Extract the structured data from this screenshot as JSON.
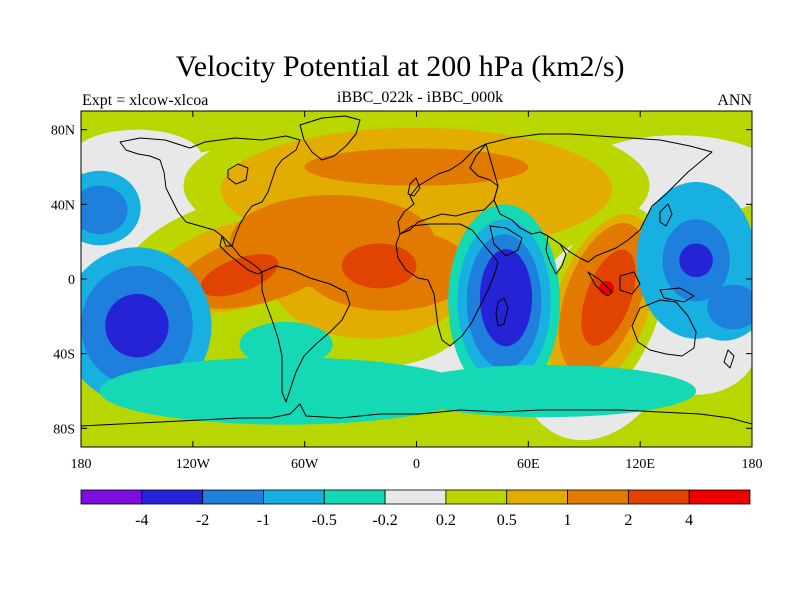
{
  "title": "Velocity Potential at 200 hPa (km2/s)",
  "left_label": "Expt = xlcow-xlcoa",
  "center_label": "iBBC_022k - iBBC_000k",
  "right_label": "ANN",
  "map": {
    "projection": "cylindrical-equidistant",
    "lon_range": [
      -180,
      180
    ],
    "lat_range": [
      -90,
      90
    ],
    "x_ticks": [
      {
        "lon": -180,
        "label": "180"
      },
      {
        "lon": -120,
        "label": "120W"
      },
      {
        "lon": -60,
        "label": "60W"
      },
      {
        "lon": 0,
        "label": "0"
      },
      {
        "lon": 60,
        "label": "60E"
      },
      {
        "lon": 120,
        "label": "120E"
      },
      {
        "lon": 180,
        "label": "180"
      }
    ],
    "y_ticks": [
      {
        "lat": 80,
        "label": "80N"
      },
      {
        "lat": 40,
        "label": "40N"
      },
      {
        "lat": 0,
        "label": "0"
      },
      {
        "lat": -40,
        "label": "40S"
      },
      {
        "lat": -80,
        "label": "80S"
      }
    ],
    "background_color": "#b8d600"
  },
  "colorbar": {
    "colors": [
      "#7a0fe0",
      "#2424d6",
      "#1f7fdc",
      "#17b0e0",
      "#14d9b4",
      "#e8e8e8",
      "#bcd600",
      "#e2ad00",
      "#e27a00",
      "#e04400",
      "#ee0000"
    ],
    "labels": [
      "-4",
      "-2",
      "-1",
      "-0.5",
      "-0.2",
      "0.2",
      "0.5",
      "1",
      "2",
      "4"
    ]
  },
  "fields": [
    {
      "level": "gray",
      "color": "#e8e8e8",
      "blobs": [
        {
          "lon": 25,
          "lat": 70,
          "rx": 32,
          "ry": 12,
          "rot": 0
        },
        {
          "lon": 140,
          "lat": 55,
          "rx": 55,
          "ry": 22,
          "rot": 0
        },
        {
          "lon": -150,
          "lat": 65,
          "rx": 35,
          "ry": 15,
          "rot": 0
        },
        {
          "lon": -115,
          "lat": 27,
          "rx": 70,
          "ry": 40,
          "rot": -15
        },
        {
          "lon": 3,
          "lat": -15,
          "rx": 30,
          "ry": 50,
          "rot": 0
        },
        {
          "lon": 98,
          "lat": -30,
          "rx": 42,
          "ry": 58,
          "rot": 20
        },
        {
          "lon": 150,
          "lat": -38,
          "rx": 32,
          "ry": 24,
          "rot": 0
        },
        {
          "lon": 82,
          "lat": 38,
          "rx": 18,
          "ry": 10,
          "rot": 0
        }
      ]
    },
    {
      "level": "yellow",
      "color": "#bcd600",
      "blobs": [
        {
          "lon": 0,
          "lat": 50,
          "rx": 125,
          "ry": 40,
          "rot": 0
        },
        {
          "lon": -98,
          "lat": 10,
          "rx": 62,
          "ry": 32,
          "rot": -15
        },
        {
          "lon": -20,
          "lat": -12,
          "rx": 52,
          "ry": 35,
          "rot": 0
        },
        {
          "lon": 100,
          "lat": -15,
          "rx": 30,
          "ry": 56,
          "rot": 20
        }
      ]
    },
    {
      "level": "gold",
      "color": "#e2ad00",
      "blobs": [
        {
          "lon": 0,
          "lat": 48,
          "rx": 105,
          "ry": 33,
          "rot": 0
        },
        {
          "lon": -92,
          "lat": 8,
          "rx": 54,
          "ry": 23,
          "rot": -15
        },
        {
          "lon": -25,
          "lat": -2,
          "rx": 52,
          "ry": 30,
          "rot": 0
        },
        {
          "lon": 100,
          "lat": -13,
          "rx": 25,
          "ry": 50,
          "rot": 20
        }
      ]
    },
    {
      "level": "orange",
      "color": "#e27a00",
      "blobs": [
        {
          "lon": -45,
          "lat": 20,
          "rx": 55,
          "ry": 25,
          "rot": 0
        },
        {
          "lon": 0,
          "lat": 60,
          "rx": 60,
          "ry": 10,
          "rot": 0
        },
        {
          "lon": -85,
          "lat": 5,
          "rx": 45,
          "ry": 18,
          "rot": -15
        },
        {
          "lon": -15,
          "lat": 5,
          "rx": 45,
          "ry": 22,
          "rot": 0
        },
        {
          "lon": 100,
          "lat": -10,
          "rx": 20,
          "ry": 42,
          "rot": 20
        }
      ]
    },
    {
      "level": "red-orange",
      "color": "#e04400",
      "blobs": [
        {
          "lon": -95,
          "lat": 2,
          "rx": 22,
          "ry": 9,
          "rot": -20
        },
        {
          "lon": -20,
          "lat": 7,
          "rx": 20,
          "ry": 12,
          "rot": 0
        },
        {
          "lon": 103,
          "lat": -10,
          "rx": 12,
          "ry": 27,
          "rot": 20
        }
      ]
    },
    {
      "level": "red",
      "color": "#ee0000",
      "blobs": [
        {
          "lon": 102,
          "lat": -5,
          "rx": 4,
          "ry": 4,
          "rot": 0
        }
      ]
    },
    {
      "level": "cyan",
      "color": "#17b0e0",
      "blobs": [
        {
          "lon": 150,
          "lat": 10,
          "rx": 32,
          "ry": 42,
          "rot": 0
        },
        {
          "lon": -150,
          "lat": -25,
          "rx": 40,
          "ry": 42,
          "rot": 0
        },
        {
          "lon": -170,
          "lat": 38,
          "rx": 22,
          "ry": 20,
          "rot": 0
        },
        {
          "lon": 165,
          "lat": -15,
          "rx": 20,
          "ry": 18,
          "rot": 0
        }
      ]
    },
    {
      "level": "blue-mid",
      "color": "#1f7fdc",
      "blobs": [
        {
          "lon": 150,
          "lat": 10,
          "rx": 18,
          "ry": 22,
          "rot": 0
        },
        {
          "lon": -150,
          "lat": -25,
          "rx": 30,
          "ry": 32,
          "rot": 0
        },
        {
          "lon": -170,
          "lat": 37,
          "rx": 15,
          "ry": 13,
          "rot": 0
        },
        {
          "lon": 170,
          "lat": -15,
          "rx": 14,
          "ry": 12,
          "rot": 0
        }
      ]
    },
    {
      "level": "blue-dark",
      "color": "#2424d6",
      "blobs": [
        {
          "lon": 150,
          "lat": 10,
          "rx": 9,
          "ry": 9,
          "rot": 0
        },
        {
          "lon": -150,
          "lat": -25,
          "rx": 17,
          "ry": 17,
          "rot": 0
        }
      ]
    },
    {
      "level": "teal-ring",
      "color": "#14d9b4",
      "blobs": [
        {
          "lon": 47,
          "lat": -12,
          "rx": 30,
          "ry": 52,
          "rot": 0
        }
      ]
    },
    {
      "level": "cyan-ring",
      "color": "#17b0e0",
      "blobs": [
        {
          "lon": 47,
          "lat": -12,
          "rx": 25,
          "ry": 44,
          "rot": 0
        }
      ]
    },
    {
      "level": "blue-mid-ring",
      "color": "#1f7fdc",
      "blobs": [
        {
          "lon": 47,
          "lat": -12,
          "rx": 20,
          "ry": 36,
          "rot": 0
        }
      ]
    },
    {
      "level": "blue-dark-core",
      "color": "#2424d6",
      "blobs": [
        {
          "lon": 48,
          "lat": -10,
          "rx": 14,
          "ry": 26,
          "rot": 0
        }
      ]
    },
    {
      "level": "southern-teal",
      "color": "#14d9b4",
      "blobs": [
        {
          "lon": -70,
          "lat": -60,
          "rx": 100,
          "ry": 18,
          "rot": 0
        },
        {
          "lon": 70,
          "lat": -60,
          "rx": 80,
          "ry": 14,
          "rot": 0
        },
        {
          "lon": -70,
          "lat": -35,
          "rx": 25,
          "ry": 12,
          "rot": 0
        }
      ]
    }
  ]
}
